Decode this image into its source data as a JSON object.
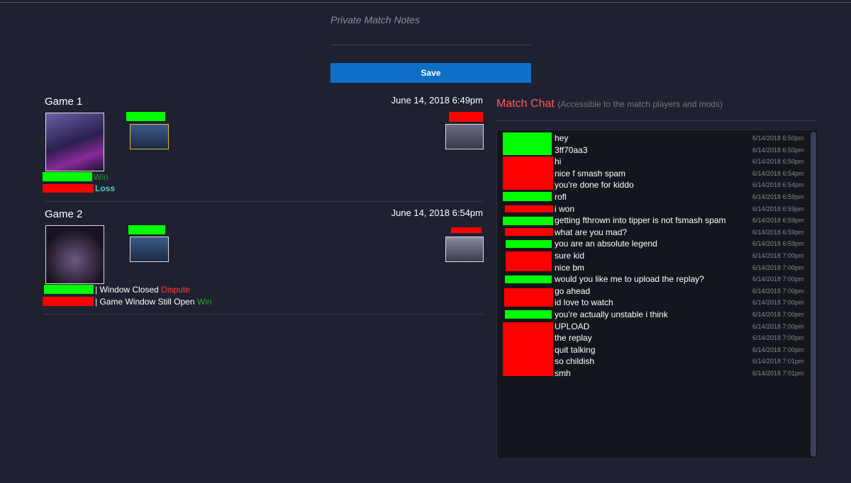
{
  "notes": {
    "placeholder": "Private Match Notes",
    "button": "Save"
  },
  "games": [
    {
      "title": "Game 1",
      "date": "June 14, 2018 6:49pm",
      "results": [
        {
          "result": "Win"
        },
        {
          "result": "Loss"
        }
      ]
    },
    {
      "title": "Game 2",
      "date": "June 14, 2018 6:54pm",
      "results": [
        {
          "status": "| Window Closed",
          "result": "Dispute"
        },
        {
          "status": "| Game Window Still Open",
          "result": "Win"
        }
      ]
    }
  ],
  "chat": {
    "title": "Match Chat",
    "subtitle": "(Accessible to the match players and mods)",
    "messages": [
      {
        "text": "hey",
        "time": "6/14/2018 6:50pm"
      },
      {
        "text": "3ff70aa3",
        "time": "6/14/2018 6:50pm"
      },
      {
        "text": "hi",
        "time": "6/14/2018 6:50pm"
      },
      {
        "text": "nice f smash spam",
        "time": "6/14/2018 6:54pm"
      },
      {
        "text": "you're done for kiddo",
        "time": "6/14/2018 6:54pm"
      },
      {
        "text": "rofl",
        "time": "6/14/2018 6:59pm"
      },
      {
        "text": "i won",
        "time": "6/14/2018 6:59pm"
      },
      {
        "text": "getting fthrown into tipper is not fsmash spam",
        "time": "6/14/2018 6:59pm"
      },
      {
        "text": "what are you mad?",
        "time": "6/14/2018 6:59pm"
      },
      {
        "text": "you are an absolute legend",
        "time": "6/14/2018 6:59pm"
      },
      {
        "text": "sure kid",
        "time": "6/14/2018 7:00pm"
      },
      {
        "text": "nice bm",
        "time": "6/14/2018 7:00pm"
      },
      {
        "text": "would you like me to upload the replay?",
        "time": "6/14/2018 7:00pm"
      },
      {
        "text": "go ahead",
        "time": "6/14/2018 7:00pm"
      },
      {
        "text": "id love to watch",
        "time": "6/14/2018 7:00pm"
      },
      {
        "text": "you're actually unstable i think",
        "time": "6/14/2018 7:00pm"
      },
      {
        "text": "UPLOAD",
        "time": "6/14/2018 7:00pm"
      },
      {
        "text": "the replay",
        "time": "6/14/2018 7:00pm"
      },
      {
        "text": "quit talking",
        "time": "6/14/2018 7:00pm"
      },
      {
        "text": "so childish",
        "time": "6/14/2018 7:01pm"
      },
      {
        "text": "smh",
        "time": "6/14/2018 7:01pm"
      }
    ]
  }
}
